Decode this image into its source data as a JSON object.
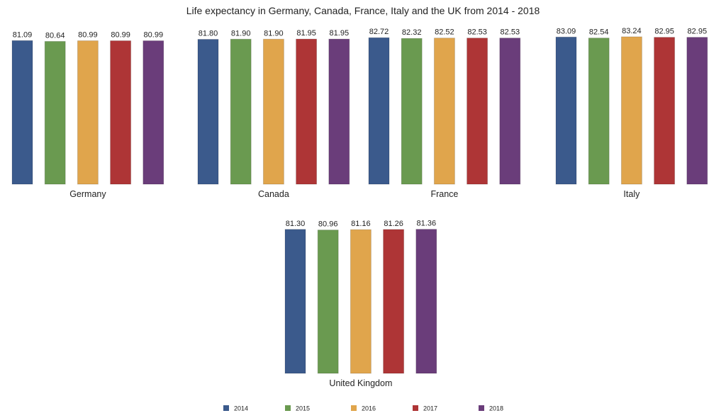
{
  "chart_data": {
    "type": "bar",
    "title": "Life expectancy in Germany, Canada, France, Italy and the UK from 2014 - 2018",
    "categories": [
      "Germany",
      "Canada",
      "France",
      "Italy",
      "United Kingdom"
    ],
    "series": [
      {
        "name": "2014",
        "color": "#3b5a8c",
        "values": [
          81.09,
          81.8,
          82.72,
          83.09,
          81.3
        ]
      },
      {
        "name": "2015",
        "color": "#6a9a50",
        "values": [
          80.64,
          81.9,
          82.32,
          82.54,
          80.96
        ]
      },
      {
        "name": "2016",
        "color": "#e0a54c",
        "values": [
          80.99,
          81.9,
          82.52,
          83.24,
          81.16
        ]
      },
      {
        "name": "2017",
        "color": "#ae3536",
        "values": [
          80.99,
          81.95,
          82.53,
          82.95,
          81.26
        ]
      },
      {
        "name": "2018",
        "color": "#6a3d7a",
        "values": [
          80.99,
          81.95,
          82.53,
          82.95,
          81.36
        ]
      }
    ],
    "value_labels": [
      [
        "81.09",
        "80.64",
        "80.99",
        "80.99",
        "80.99"
      ],
      [
        "81.80",
        "81.90",
        "81.90",
        "81.95",
        "81.95"
      ],
      [
        "82.72",
        "82.32",
        "82.52",
        "82.53",
        "82.53"
      ],
      [
        "83.09",
        "82.54",
        "83.24",
        "82.95",
        "82.95"
      ],
      [
        "81.30",
        "80.96",
        "81.16",
        "81.26",
        "81.36"
      ]
    ],
    "ylim": [
      0,
      83.24
    ],
    "grid": false,
    "legend_position": "bottom",
    "layout": "small multiples, one panel per country"
  }
}
